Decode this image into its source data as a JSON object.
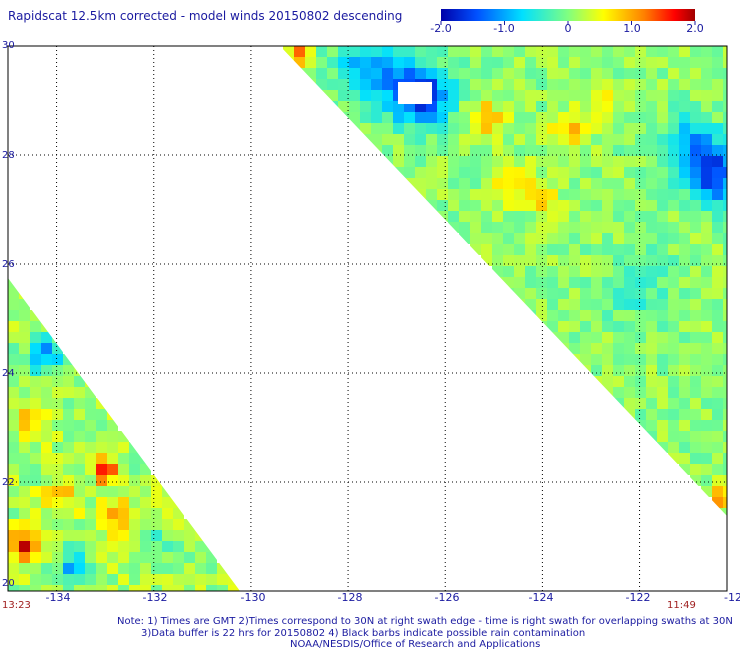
{
  "header": {
    "title": "Rapidscat 12.5km corrected - model winds 20150802 descending"
  },
  "colorbar": {
    "ticks": [
      "-2.0",
      "-1.0",
      "0",
      "1.0",
      "2.0"
    ],
    "tick_values": [
      -2.0,
      -1.0,
      0,
      1.0,
      2.0
    ],
    "colors": [
      "#0000a8",
      "#0050ff",
      "#00e0ff",
      "#80ff80",
      "#ffff00",
      "#ff8000",
      "#ff0000",
      "#a00000"
    ]
  },
  "axes": {
    "lat_labels": [
      "30",
      "28",
      "26",
      "24",
      "22",
      "20"
    ],
    "lon_labels": [
      "-134",
      "-132",
      "-130",
      "-128",
      "-126",
      "-124",
      "-122",
      "-12"
    ]
  },
  "times": {
    "left": "13:23",
    "right": "11:49"
  },
  "notes": {
    "line1": "Note: 1) Times are GMT 2)Times correspond to 30N at right swath edge - time is right swath for overlapping swaths at 30N",
    "line2": "3)Data buffer is 22 hrs for 20150802 4) Black barbs indicate possible rain contamination",
    "line3": "NOAA/NESDIS/Office of Research and Applications"
  },
  "chart_data": {
    "type": "heatmap",
    "title": "Rapidscat 12.5km corrected - model winds 20150802 descending",
    "x_range": [
      -135,
      -120.2
    ],
    "y_range": [
      20,
      30
    ],
    "value_range": [
      -2.0,
      2.0
    ],
    "grid": true,
    "swaths": [
      {
        "name": "",
        "time": "11:49",
        "region": "upper-right triangle"
      },
      {
        "name": "",
        "time": "13:23",
        "region": "lower-left triangle"
      }
    ]
  }
}
